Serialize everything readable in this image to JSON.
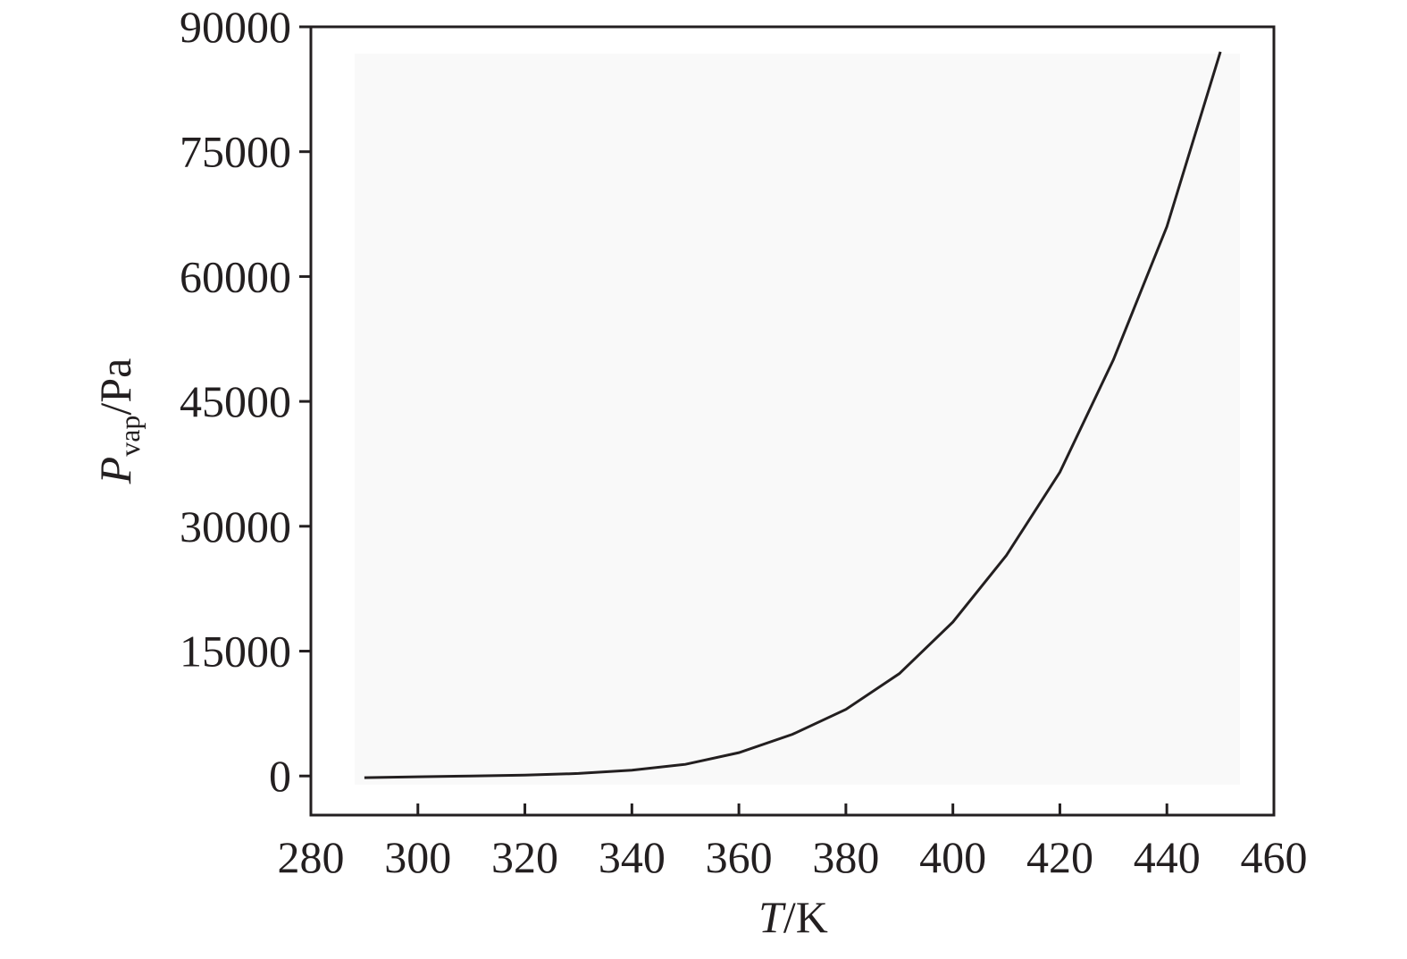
{
  "chart_data": {
    "type": "line",
    "x_label": {
      "symbol": "T",
      "unit": "/K"
    },
    "y_label": {
      "symbol": "P",
      "subscript": "vap",
      "unit": "/Pa"
    },
    "x": [
      290,
      300,
      310,
      320,
      330,
      340,
      350,
      360,
      370,
      380,
      390,
      400,
      410,
      420,
      430,
      440,
      450
    ],
    "series": [
      {
        "color": "#231f20",
        "values": [
          -200,
          -100,
          0,
          100,
          300,
          700,
          1400,
          2800,
          5000,
          8000,
          12300,
          18500,
          26500,
          36500,
          50000,
          66000,
          87000
        ]
      }
    ],
    "xlim": [
      280,
      460
    ],
    "xticks": [
      280,
      300,
      320,
      340,
      360,
      380,
      400,
      420,
      440,
      460
    ],
    "ylim": [
      -4700,
      90000
    ],
    "yticks": [
      0,
      15000,
      30000,
      45000,
      60000,
      75000,
      90000
    ]
  }
}
